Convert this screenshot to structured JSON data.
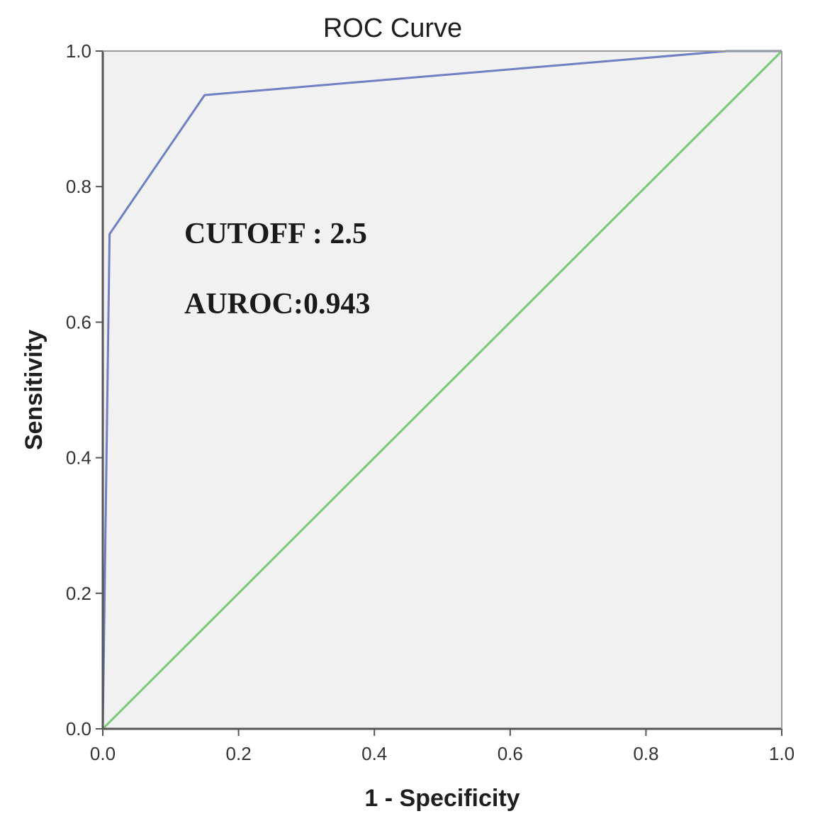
{
  "chart_data": {
    "type": "line",
    "title": "ROC Curve",
    "xlabel": "1 - Specificity",
    "ylabel": "Sensitivity",
    "xlim": [
      0,
      1
    ],
    "ylim": [
      0,
      1
    ],
    "x_ticks": [
      "0.0",
      "0.2",
      "0.4",
      "0.6",
      "0.8",
      "1.0"
    ],
    "y_ticks": [
      "0.0",
      "0.2",
      "0.4",
      "0.6",
      "0.8",
      "1.0"
    ],
    "grid": false,
    "series": [
      {
        "color": "#6f7fc2",
        "points": [
          {
            "x": 0.0,
            "y": 0.0
          },
          {
            "x": 0.01,
            "y": 0.73
          },
          {
            "x": 0.15,
            "y": 0.935
          },
          {
            "x": 0.92,
            "y": 1.0
          },
          {
            "x": 1.0,
            "y": 1.0
          }
        ]
      },
      {
        "color": "#78c878",
        "points": [
          {
            "x": 0.0,
            "y": 0.0
          },
          {
            "x": 1.0,
            "y": 1.0
          }
        ]
      }
    ],
    "annotations": [
      {
        "text": "CUTOFF : 2.5"
      },
      {
        "text": "AUROC:0.943"
      }
    ],
    "plot_background": "#f1f1f1"
  }
}
